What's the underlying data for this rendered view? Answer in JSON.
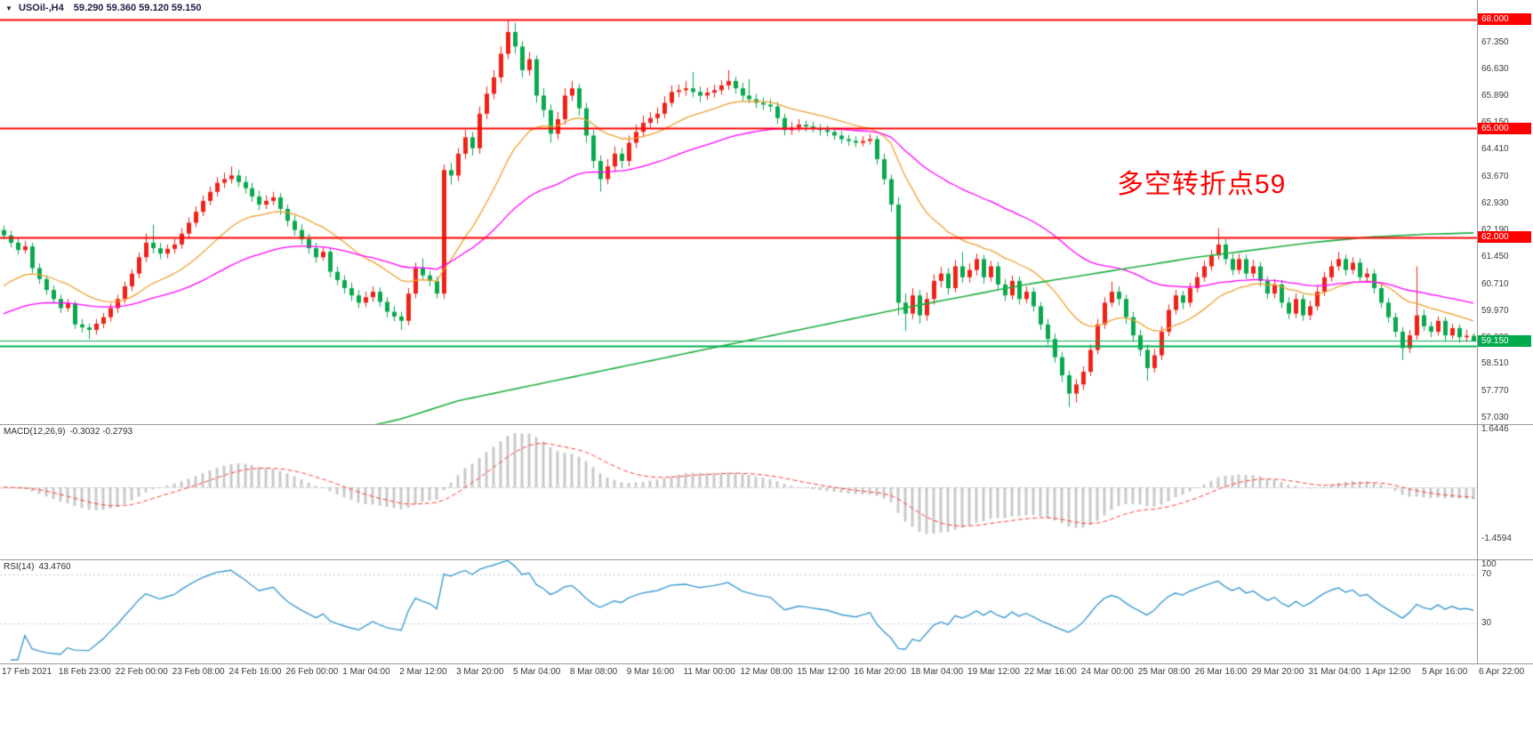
{
  "window": {
    "symbol_period": "USOil-,H4",
    "ohlc_text": "59.290 59.360 59.120 59.150",
    "dropdown_glyph": "▼"
  },
  "annotation": {
    "text": "多空转折点59",
    "color": "#ff0000"
  },
  "colors": {
    "bull": "#ee2218",
    "bear": "#0aa84e",
    "line_red": "#ff0000",
    "line_green": "#00b050",
    "ma_fast": "#f0a030",
    "ma_mid": "#ff00ff",
    "ma_slow": "#1fae3f",
    "macd_hist": "#c8c8c8",
    "macd_signal": "#ff3b30",
    "macd_zero": "#bbbbbb",
    "rsi_line": "#3d9bd1",
    "level_dotted": "#c3c7dd",
    "axis_text": "#3a3a3a",
    "separator": "#9a9a9a",
    "badge_text": "#ffffff"
  },
  "price_axis": {
    "ticks": [
      "67.350",
      "66.630",
      "65.890",
      "65.150",
      "64.410",
      "63.670",
      "62.930",
      "62.190",
      "61.450",
      "60.710",
      "59.970",
      "59.230",
      "58.510",
      "57.770",
      "57.030"
    ]
  },
  "badges": [
    {
      "label": "68.000",
      "value": 68.0,
      "bg": "#ff0000"
    },
    {
      "label": "65.000",
      "value": 65.0,
      "bg": "#ff0000"
    },
    {
      "label": "62.000",
      "value": 62.0,
      "bg": "#ff0000"
    },
    {
      "label": "59.150",
      "value": 59.15,
      "bg": "#00a94b"
    }
  ],
  "macd_panel": {
    "name": "MACD(12,26,9)",
    "values": "-0.3032 -0.2793",
    "axis": [
      {
        "label": "1.6446",
        "value": 1.6446
      },
      {
        "label": "-1.4594",
        "value": -1.4594
      }
    ]
  },
  "rsi_panel": {
    "name": "RSI(14)",
    "value": "43.4760",
    "axis": [
      {
        "label": "100",
        "value": 100
      },
      {
        "label": "70",
        "value": 70
      },
      {
        "label": "30",
        "value": 30
      }
    ],
    "levels": [
      70,
      30
    ]
  },
  "time_axis": {
    "labels": [
      "17 Feb 2021",
      "18 Feb 23:00",
      "22 Feb 00:00",
      "23 Feb 08:00",
      "24 Feb 16:00",
      "26 Feb 00:00",
      "1 Mar 04:00",
      "2 Mar 12:00",
      "3 Mar 20:00",
      "5 Mar 04:00",
      "8 Mar 08:00",
      "9 Mar 16:00",
      "11 Mar 00:00",
      "12 Mar 08:00",
      "15 Mar 12:00",
      "16 Mar 20:00",
      "18 Mar 04:00",
      "19 Mar 12:00",
      "22 Mar 16:00",
      "24 Mar 00:00",
      "25 Mar 08:00",
      "26 Mar 16:00",
      "29 Mar 20:00",
      "31 Mar 04:00",
      "1 Apr 12:00",
      "5 Apr 16:00",
      "6 Apr 22:00"
    ]
  },
  "chart_data": {
    "type": "candlestick",
    "symbol": "USOil",
    "timeframe": "H4",
    "ylim": [
      56.88,
      68.53
    ],
    "bars_per_time_label": 8,
    "current_ohlc": {
      "open": 59.29,
      "high": 59.36,
      "low": 59.12,
      "close": 59.15
    },
    "horizontal_lines": [
      {
        "value": 68.0,
        "color": "#ff0000",
        "width": 2
      },
      {
        "value": 65.0,
        "color": "#ff0000",
        "width": 2
      },
      {
        "value": 62.0,
        "color": "#ff0000",
        "width": 2
      },
      {
        "value": 59.0,
        "color": "#00b050",
        "width": 2
      },
      {
        "value": 59.15,
        "color": "#00b050",
        "width": 1
      }
    ],
    "moving_averages": {
      "fast": {
        "type": "ema",
        "period": 18,
        "seed": 60.5
      },
      "mid": {
        "type": "ema",
        "period": 48,
        "seed": 59.8
      },
      "slow_points": [
        [
          48,
          56.65
        ],
        [
          56,
          57.0
        ],
        [
          64,
          57.5
        ],
        [
          80,
          58.15
        ],
        [
          96,
          58.8
        ],
        [
          112,
          59.45
        ],
        [
          128,
          60.1
        ],
        [
          144,
          60.7
        ],
        [
          160,
          61.2
        ],
        [
          168,
          61.45
        ],
        [
          176,
          61.65
        ],
        [
          184,
          61.85
        ],
        [
          192,
          62.0
        ],
        [
          200,
          62.08
        ],
        [
          207,
          62.12
        ]
      ]
    },
    "macd": {
      "fast": 12,
      "slow": 26,
      "signal": 9,
      "display": "-0.3032 -0.2793",
      "axis_max": 1.6446,
      "axis_min": -1.4594
    },
    "rsi": {
      "period": 14,
      "display": 43.476,
      "levels": [
        70,
        30
      ],
      "ylim": [
        0,
        100
      ]
    },
    "candles": [
      [
        62.2,
        62.32,
        61.95,
        62.05
      ],
      [
        62.05,
        62.18,
        61.72,
        61.85
      ],
      [
        61.85,
        61.98,
        61.52,
        61.65
      ],
      [
        61.65,
        61.9,
        61.55,
        61.75
      ],
      [
        61.75,
        61.85,
        61.02,
        61.15
      ],
      [
        61.15,
        61.28,
        60.72,
        60.85
      ],
      [
        60.85,
        60.95,
        60.42,
        60.55
      ],
      [
        60.55,
        60.68,
        60.18,
        60.3
      ],
      [
        60.3,
        60.42,
        59.92,
        60.05
      ],
      [
        60.05,
        60.3,
        59.95,
        60.18
      ],
      [
        60.18,
        60.25,
        59.48,
        59.6
      ],
      [
        59.6,
        59.75,
        59.38,
        59.52
      ],
      [
        59.52,
        59.62,
        59.2,
        59.45
      ],
      [
        59.45,
        59.75,
        59.32,
        59.62
      ],
      [
        59.62,
        59.92,
        59.5,
        59.8
      ],
      [
        59.8,
        60.18,
        59.68,
        60.05
      ],
      [
        60.05,
        60.42,
        59.92,
        60.3
      ],
      [
        60.3,
        60.78,
        60.18,
        60.65
      ],
      [
        60.65,
        61.12,
        60.52,
        61.0
      ],
      [
        61.0,
        61.58,
        60.88,
        61.45
      ],
      [
        61.45,
        62.1,
        61.32,
        61.85
      ],
      [
        61.85,
        62.35,
        61.55,
        61.7
      ],
      [
        61.7,
        61.85,
        61.4,
        61.55
      ],
      [
        61.55,
        61.8,
        61.42,
        61.68
      ],
      [
        61.68,
        61.95,
        61.55,
        61.8
      ],
      [
        61.8,
        62.25,
        61.68,
        62.1
      ],
      [
        62.1,
        62.55,
        61.98,
        62.4
      ],
      [
        62.4,
        62.85,
        62.28,
        62.7
      ],
      [
        62.7,
        63.15,
        62.58,
        63.0
      ],
      [
        63.0,
        63.4,
        62.88,
        63.25
      ],
      [
        63.25,
        63.65,
        63.12,
        63.5
      ],
      [
        63.5,
        63.78,
        63.35,
        63.6
      ],
      [
        63.6,
        63.95,
        63.48,
        63.7
      ],
      [
        63.7,
        63.85,
        63.38,
        63.52
      ],
      [
        63.52,
        63.68,
        63.2,
        63.35
      ],
      [
        63.35,
        63.5,
        62.98,
        63.12
      ],
      [
        63.12,
        63.28,
        62.75,
        62.9
      ],
      [
        62.9,
        63.15,
        62.78,
        63.0
      ],
      [
        63.0,
        63.25,
        62.88,
        63.1
      ],
      [
        63.1,
        63.22,
        62.62,
        62.78
      ],
      [
        62.78,
        62.9,
        62.3,
        62.45
      ],
      [
        62.45,
        62.6,
        62.05,
        62.2
      ],
      [
        62.2,
        62.35,
        61.8,
        61.95
      ],
      [
        61.95,
        62.1,
        61.55,
        61.7
      ],
      [
        61.7,
        61.85,
        61.3,
        61.45
      ],
      [
        61.45,
        61.72,
        61.35,
        61.6
      ],
      [
        61.6,
        61.7,
        60.9,
        61.05
      ],
      [
        61.05,
        61.2,
        60.68,
        60.82
      ],
      [
        60.82,
        60.95,
        60.45,
        60.6
      ],
      [
        60.6,
        60.75,
        60.25,
        60.4
      ],
      [
        60.4,
        60.55,
        60.05,
        60.2
      ],
      [
        60.2,
        60.5,
        60.08,
        60.35
      ],
      [
        60.35,
        60.65,
        60.22,
        60.5
      ],
      [
        60.5,
        60.62,
        60.08,
        60.22
      ],
      [
        60.22,
        60.35,
        59.8,
        59.95
      ],
      [
        59.95,
        60.1,
        59.68,
        59.82
      ],
      [
        59.82,
        59.95,
        59.45,
        59.7
      ],
      [
        59.7,
        60.6,
        59.58,
        60.45
      ],
      [
        60.45,
        61.3,
        60.32,
        61.15
      ],
      [
        61.15,
        61.42,
        60.82,
        60.95
      ],
      [
        60.95,
        61.08,
        60.65,
        60.8
      ],
      [
        60.8,
        60.92,
        60.32,
        60.45
      ],
      [
        60.45,
        64.0,
        60.3,
        63.85
      ],
      [
        63.85,
        64.05,
        63.45,
        63.7
      ],
      [
        63.7,
        64.45,
        63.55,
        64.3
      ],
      [
        64.3,
        64.95,
        64.15,
        64.75
      ],
      [
        64.75,
        64.9,
        64.25,
        64.45
      ],
      [
        64.45,
        65.6,
        64.3,
        65.4
      ],
      [
        65.4,
        66.15,
        65.25,
        65.95
      ],
      [
        65.95,
        66.6,
        65.8,
        66.4
      ],
      [
        66.4,
        67.25,
        66.25,
        67.05
      ],
      [
        67.05,
        67.98,
        66.9,
        67.65
      ],
      [
        67.65,
        67.9,
        67.05,
        67.25
      ],
      [
        67.25,
        67.4,
        66.4,
        66.6
      ],
      [
        66.6,
        67.1,
        66.45,
        66.9
      ],
      [
        66.9,
        67.0,
        65.7,
        65.9
      ],
      [
        65.9,
        66.1,
        65.3,
        65.5
      ],
      [
        65.5,
        65.65,
        64.6,
        64.85
      ],
      [
        64.85,
        65.45,
        64.7,
        65.25
      ],
      [
        65.25,
        66.1,
        65.1,
        65.9
      ],
      [
        65.9,
        66.3,
        65.75,
        66.1
      ],
      [
        66.1,
        66.22,
        65.35,
        65.55
      ],
      [
        65.55,
        65.7,
        64.6,
        64.8
      ],
      [
        64.8,
        64.95,
        63.9,
        64.1
      ],
      [
        64.1,
        64.25,
        63.25,
        63.6
      ],
      [
        63.6,
        64.15,
        63.45,
        63.95
      ],
      [
        63.95,
        64.5,
        63.8,
        64.3
      ],
      [
        64.3,
        64.45,
        63.9,
        64.1
      ],
      [
        64.1,
        64.8,
        63.95,
        64.6
      ],
      [
        64.6,
        65.1,
        64.45,
        64.9
      ],
      [
        64.9,
        65.35,
        64.75,
        65.15
      ],
      [
        65.15,
        65.45,
        65.0,
        65.28
      ],
      [
        65.28,
        65.58,
        65.12,
        65.4
      ],
      [
        65.4,
        65.88,
        65.28,
        65.7
      ],
      [
        65.7,
        66.18,
        65.58,
        66.0
      ],
      [
        66.0,
        66.2,
        65.85,
        66.05
      ],
      [
        66.05,
        66.3,
        65.9,
        66.1
      ],
      [
        66.1,
        66.55,
        65.85,
        66.0
      ],
      [
        66.0,
        66.15,
        65.72,
        65.9
      ],
      [
        65.9,
        66.12,
        65.78,
        65.98
      ],
      [
        65.98,
        66.2,
        65.85,
        66.05
      ],
      [
        66.05,
        66.32,
        65.92,
        66.18
      ],
      [
        66.18,
        66.6,
        66.05,
        66.3
      ],
      [
        66.3,
        66.42,
        65.95,
        66.1
      ],
      [
        66.1,
        66.25,
        65.75,
        65.9
      ],
      [
        65.9,
        66.35,
        65.7,
        65.8
      ],
      [
        65.8,
        65.95,
        65.55,
        65.7
      ],
      [
        65.7,
        65.85,
        65.5,
        65.65
      ],
      [
        65.65,
        65.8,
        65.45,
        65.6
      ],
      [
        65.6,
        65.72,
        65.12,
        65.28
      ],
      [
        65.28,
        65.4,
        64.8,
        64.95
      ],
      [
        64.95,
        65.18,
        64.82,
        65.02
      ],
      [
        65.02,
        65.25,
        64.9,
        65.1
      ],
      [
        65.1,
        65.22,
        64.9,
        65.05
      ],
      [
        65.05,
        65.18,
        64.88,
        65.0
      ],
      [
        65.0,
        65.12,
        64.8,
        64.95
      ],
      [
        64.95,
        65.08,
        64.78,
        64.9
      ],
      [
        64.9,
        65.02,
        64.68,
        64.8
      ],
      [
        64.8,
        64.92,
        64.58,
        64.7
      ],
      [
        64.7,
        64.82,
        64.52,
        64.65
      ],
      [
        64.65,
        64.78,
        64.48,
        64.6
      ],
      [
        64.6,
        64.78,
        64.5,
        64.65
      ],
      [
        64.65,
        64.85,
        64.55,
        64.7
      ],
      [
        64.7,
        64.8,
        64.0,
        64.15
      ],
      [
        64.15,
        64.3,
        63.45,
        63.6
      ],
      [
        63.6,
        63.72,
        62.7,
        62.9
      ],
      [
        62.9,
        63.1,
        59.85,
        60.2
      ],
      [
        60.2,
        60.45,
        59.42,
        59.9
      ],
      [
        59.9,
        60.6,
        59.75,
        60.4
      ],
      [
        60.4,
        60.55,
        59.62,
        59.85
      ],
      [
        59.85,
        60.48,
        59.7,
        60.3
      ],
      [
        60.3,
        60.98,
        60.15,
        60.8
      ],
      [
        60.8,
        61.18,
        60.62,
        61.0
      ],
      [
        61.0,
        61.15,
        60.42,
        60.6
      ],
      [
        60.6,
        61.38,
        60.48,
        61.2
      ],
      [
        61.2,
        61.6,
        60.75,
        60.9
      ],
      [
        60.9,
        61.28,
        60.75,
        61.1
      ],
      [
        61.1,
        61.55,
        60.95,
        61.4
      ],
      [
        61.4,
        61.52,
        60.72,
        60.9
      ],
      [
        60.9,
        61.35,
        60.78,
        61.2
      ],
      [
        61.2,
        61.32,
        60.55,
        60.7
      ],
      [
        60.7,
        60.85,
        60.25,
        60.4
      ],
      [
        60.4,
        60.95,
        60.28,
        60.8
      ],
      [
        60.8,
        60.92,
        60.15,
        60.3
      ],
      [
        60.3,
        60.65,
        60.18,
        60.5
      ],
      [
        60.5,
        60.62,
        59.95,
        60.1
      ],
      [
        60.1,
        60.22,
        59.45,
        59.6
      ],
      [
        59.6,
        59.75,
        59.05,
        59.2
      ],
      [
        59.2,
        59.35,
        58.55,
        58.7
      ],
      [
        58.7,
        58.85,
        58.02,
        58.2
      ],
      [
        58.2,
        58.32,
        57.32,
        57.7
      ],
      [
        57.7,
        58.1,
        57.45,
        57.95
      ],
      [
        57.95,
        58.45,
        57.8,
        58.3
      ],
      [
        58.3,
        59.05,
        58.18,
        58.9
      ],
      [
        58.9,
        59.75,
        58.78,
        59.6
      ],
      [
        59.6,
        60.35,
        59.48,
        60.2
      ],
      [
        60.2,
        60.78,
        60.08,
        60.5
      ],
      [
        60.5,
        60.65,
        60.12,
        60.3
      ],
      [
        60.3,
        60.42,
        59.62,
        59.8
      ],
      [
        59.8,
        59.95,
        59.12,
        59.3
      ],
      [
        59.3,
        59.45,
        58.72,
        58.9
      ],
      [
        58.9,
        59.05,
        58.05,
        58.4
      ],
      [
        58.4,
        58.92,
        58.28,
        58.75
      ],
      [
        58.75,
        59.55,
        58.62,
        59.4
      ],
      [
        59.4,
        60.15,
        59.28,
        60.0
      ],
      [
        60.0,
        60.55,
        59.88,
        60.4
      ],
      [
        60.4,
        60.52,
        60.02,
        60.2
      ],
      [
        60.2,
        60.75,
        60.08,
        60.6
      ],
      [
        60.6,
        61.05,
        60.48,
        60.9
      ],
      [
        60.9,
        61.35,
        60.78,
        61.2
      ],
      [
        61.2,
        61.65,
        61.08,
        61.5
      ],
      [
        61.5,
        62.25,
        61.38,
        61.8
      ],
      [
        61.8,
        61.95,
        61.25,
        61.4
      ],
      [
        61.4,
        61.55,
        60.95,
        61.1
      ],
      [
        61.1,
        61.55,
        60.98,
        61.4
      ],
      [
        61.4,
        61.52,
        60.85,
        61.0
      ],
      [
        61.0,
        61.38,
        60.88,
        61.2
      ],
      [
        61.2,
        61.32,
        60.65,
        60.8
      ],
      [
        60.8,
        60.92,
        60.3,
        60.45
      ],
      [
        60.45,
        60.85,
        60.32,
        60.7
      ],
      [
        60.7,
        60.82,
        60.05,
        60.2
      ],
      [
        60.2,
        60.35,
        59.75,
        59.9
      ],
      [
        59.9,
        60.45,
        59.78,
        60.3
      ],
      [
        60.3,
        60.42,
        59.7,
        59.85
      ],
      [
        59.85,
        60.25,
        59.72,
        60.1
      ],
      [
        60.1,
        60.65,
        59.98,
        60.5
      ],
      [
        60.5,
        61.05,
        60.38,
        60.9
      ],
      [
        60.9,
        61.35,
        60.78,
        61.2
      ],
      [
        61.2,
        61.6,
        61.08,
        61.4
      ],
      [
        61.4,
        61.52,
        60.95,
        61.1
      ],
      [
        61.1,
        61.45,
        60.98,
        61.3
      ],
      [
        61.3,
        61.42,
        60.75,
        60.9
      ],
      [
        60.9,
        61.15,
        60.78,
        61.0
      ],
      [
        61.0,
        61.12,
        60.45,
        60.6
      ],
      [
        60.6,
        60.72,
        60.05,
        60.2
      ],
      [
        60.2,
        60.32,
        59.65,
        59.8
      ],
      [
        59.8,
        59.92,
        59.25,
        59.4
      ],
      [
        59.4,
        59.52,
        58.62,
        58.95
      ],
      [
        58.95,
        59.45,
        58.82,
        59.3
      ],
      [
        59.3,
        61.2,
        59.18,
        59.85
      ],
      [
        59.85,
        60.0,
        59.42,
        59.55
      ],
      [
        59.55,
        59.68,
        59.25,
        59.4
      ],
      [
        59.4,
        59.82,
        59.3,
        59.7
      ],
      [
        59.7,
        59.8,
        59.15,
        59.3
      ],
      [
        59.3,
        59.62,
        59.2,
        59.5
      ],
      [
        59.5,
        59.6,
        59.1,
        59.25
      ],
      [
        59.25,
        59.45,
        59.12,
        59.29
      ],
      [
        59.29,
        59.36,
        59.12,
        59.15
      ]
    ]
  }
}
